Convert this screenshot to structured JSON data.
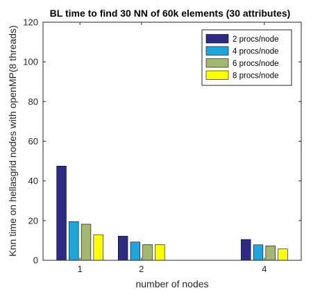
{
  "chart_data": {
    "type": "bar",
    "title": "BL time to find 30 NN of 60k elements (30 attributes)",
    "xlabel": "number of nodes",
    "ylabel": "Knn time on hellasgrid nodes with openMP(8 threads)",
    "x": [
      1,
      2,
      4
    ],
    "x_ticks": [
      "1",
      "2",
      "4"
    ],
    "xlim": [
      0.4,
      4.6
    ],
    "ylim": [
      0,
      120
    ],
    "y_ticks": [
      "0",
      "20",
      "40",
      "60",
      "80",
      "100",
      "120"
    ],
    "grid": false,
    "legend_position": "top-right",
    "series": [
      {
        "name": "2 procs/node",
        "color": "#2e2a84",
        "values": [
          47.5,
          12.2,
          10.5
        ]
      },
      {
        "name": "4 procs/node",
        "color": "#1ea5dc",
        "values": [
          19.5,
          9.2,
          7.8
        ]
      },
      {
        "name": "6 procs/node",
        "color": "#a3b86f",
        "values": [
          18.2,
          7.9,
          7.3
        ]
      },
      {
        "name": "8 procs/node",
        "color": "#ffff00",
        "values": [
          12.9,
          7.9,
          5.7
        ]
      }
    ]
  }
}
